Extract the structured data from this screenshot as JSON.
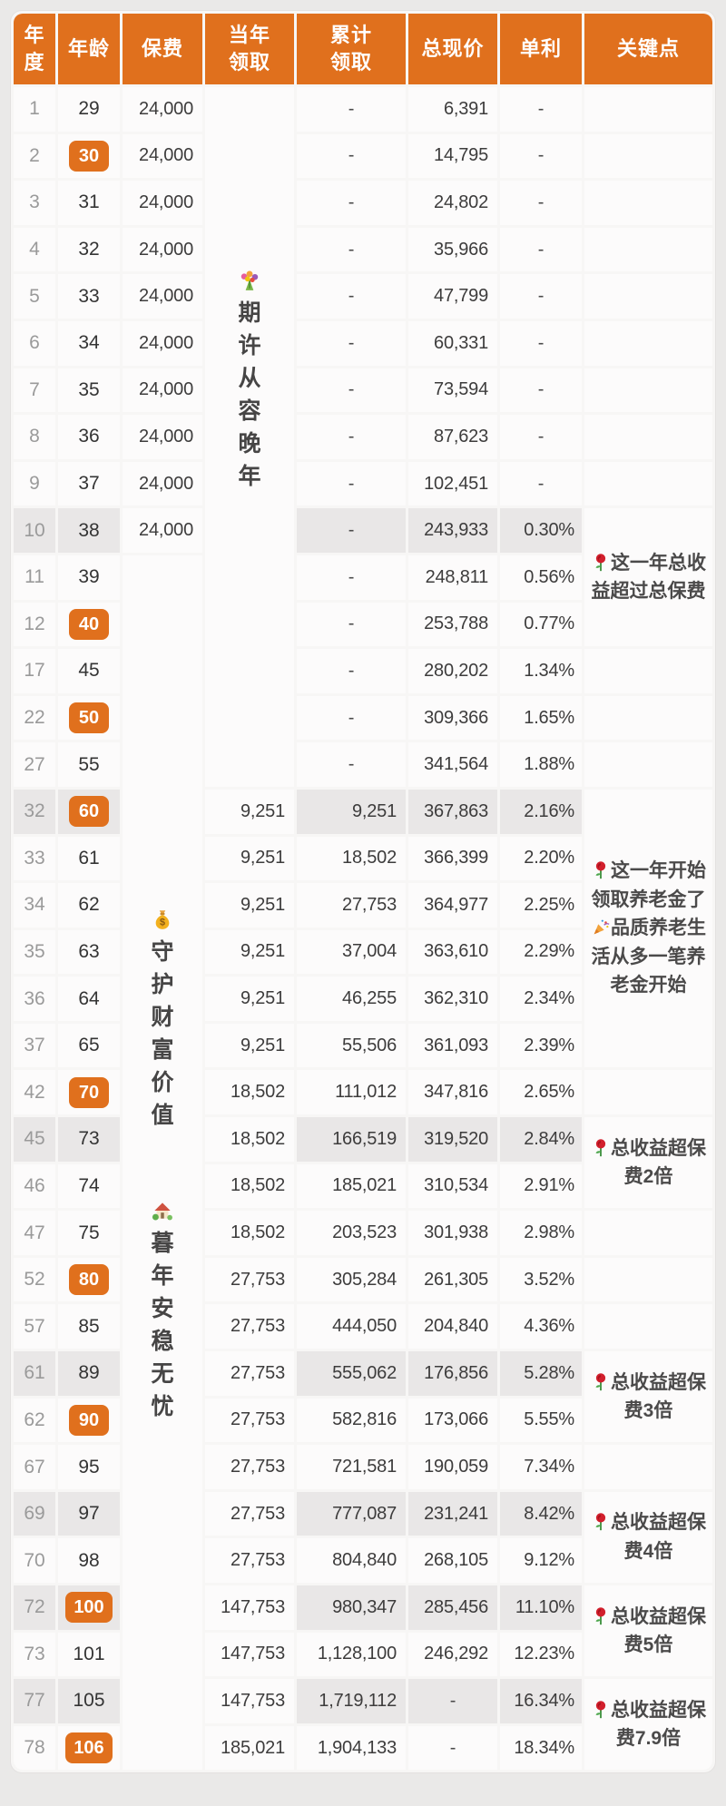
{
  "colors": {
    "page_bg": "#eae9e8",
    "header_bg": "#e0701d",
    "badge_bg": "#e0701d",
    "cell_bg": "#fcfbfb",
    "shaded_row_bg": "#e9e7e7",
    "year_text": "#9a9a9a",
    "number_text": "#3d3c3c",
    "key_point_text": "#4b4a4a"
  },
  "table": {
    "columns": [
      {
        "key": "year",
        "label": "年\n度"
      },
      {
        "key": "age",
        "label": "年龄"
      },
      {
        "key": "premium",
        "label": "保费"
      },
      {
        "key": "current",
        "label": "当年\n领取"
      },
      {
        "key": "cumulative",
        "label": "累计\n领取"
      },
      {
        "key": "total",
        "label": "总现价"
      },
      {
        "key": "rate",
        "label": "单利"
      },
      {
        "key": "key_point",
        "label": "关键点"
      }
    ],
    "rows": [
      {
        "year": "1",
        "age": "29",
        "age_badge": false,
        "premium": "24,000",
        "current": null,
        "cumulative": "-",
        "total": "6,391",
        "rate": "-",
        "shaded": false
      },
      {
        "year": "2",
        "age": "30",
        "age_badge": true,
        "premium": "24,000",
        "current": null,
        "cumulative": "-",
        "total": "14,795",
        "rate": "-",
        "shaded": false
      },
      {
        "year": "3",
        "age": "31",
        "age_badge": false,
        "premium": "24,000",
        "current": null,
        "cumulative": "-",
        "total": "24,802",
        "rate": "-",
        "shaded": false
      },
      {
        "year": "4",
        "age": "32",
        "age_badge": false,
        "premium": "24,000",
        "current": null,
        "cumulative": "-",
        "total": "35,966",
        "rate": "-",
        "shaded": false
      },
      {
        "year": "5",
        "age": "33",
        "age_badge": false,
        "premium": "24,000",
        "current": null,
        "cumulative": "-",
        "total": "47,799",
        "rate": "-",
        "shaded": false
      },
      {
        "year": "6",
        "age": "34",
        "age_badge": false,
        "premium": "24,000",
        "current": null,
        "cumulative": "-",
        "total": "60,331",
        "rate": "-",
        "shaded": false
      },
      {
        "year": "7",
        "age": "35",
        "age_badge": false,
        "premium": "24,000",
        "current": null,
        "cumulative": "-",
        "total": "73,594",
        "rate": "-",
        "shaded": false
      },
      {
        "year": "8",
        "age": "36",
        "age_badge": false,
        "premium": "24,000",
        "current": null,
        "cumulative": "-",
        "total": "87,623",
        "rate": "-",
        "shaded": false
      },
      {
        "year": "9",
        "age": "37",
        "age_badge": false,
        "premium": "24,000",
        "current": null,
        "cumulative": "-",
        "total": "102,451",
        "rate": "-",
        "shaded": false
      },
      {
        "year": "10",
        "age": "38",
        "age_badge": false,
        "premium": "24,000",
        "current": null,
        "cumulative": "-",
        "total": "243,933",
        "rate": "0.30%",
        "shaded": true
      },
      {
        "year": "11",
        "age": "39",
        "age_badge": false,
        "premium": null,
        "current": null,
        "cumulative": "-",
        "total": "248,811",
        "rate": "0.56%",
        "shaded": false
      },
      {
        "year": "12",
        "age": "40",
        "age_badge": true,
        "premium": null,
        "current": null,
        "cumulative": "-",
        "total": "253,788",
        "rate": "0.77%",
        "shaded": false
      },
      {
        "year": "17",
        "age": "45",
        "age_badge": false,
        "premium": null,
        "current": null,
        "cumulative": "-",
        "total": "280,202",
        "rate": "1.34%",
        "shaded": false
      },
      {
        "year": "22",
        "age": "50",
        "age_badge": true,
        "premium": null,
        "current": null,
        "cumulative": "-",
        "total": "309,366",
        "rate": "1.65%",
        "shaded": false
      },
      {
        "year": "27",
        "age": "55",
        "age_badge": false,
        "premium": null,
        "current": null,
        "cumulative": "-",
        "total": "341,564",
        "rate": "1.88%",
        "shaded": false
      },
      {
        "year": "32",
        "age": "60",
        "age_badge": true,
        "premium": null,
        "current": "9,251",
        "cumulative": "9,251",
        "total": "367,863",
        "rate": "2.16%",
        "shaded": true
      },
      {
        "year": "33",
        "age": "61",
        "age_badge": false,
        "premium": null,
        "current": "9,251",
        "cumulative": "18,502",
        "total": "366,399",
        "rate": "2.20%",
        "shaded": false
      },
      {
        "year": "34",
        "age": "62",
        "age_badge": false,
        "premium": null,
        "current": "9,251",
        "cumulative": "27,753",
        "total": "364,977",
        "rate": "2.25%",
        "shaded": false
      },
      {
        "year": "35",
        "age": "63",
        "age_badge": false,
        "premium": null,
        "current": "9,251",
        "cumulative": "37,004",
        "total": "363,610",
        "rate": "2.29%",
        "shaded": false
      },
      {
        "year": "36",
        "age": "64",
        "age_badge": false,
        "premium": null,
        "current": "9,251",
        "cumulative": "46,255",
        "total": "362,310",
        "rate": "2.34%",
        "shaded": false
      },
      {
        "year": "37",
        "age": "65",
        "age_badge": false,
        "premium": null,
        "current": "9,251",
        "cumulative": "55,506",
        "total": "361,093",
        "rate": "2.39%",
        "shaded": false
      },
      {
        "year": "42",
        "age": "70",
        "age_badge": true,
        "premium": null,
        "current": "18,502",
        "cumulative": "111,012",
        "total": "347,816",
        "rate": "2.65%",
        "shaded": false
      },
      {
        "year": "45",
        "age": "73",
        "age_badge": false,
        "premium": null,
        "current": "18,502",
        "cumulative": "166,519",
        "total": "319,520",
        "rate": "2.84%",
        "shaded": true
      },
      {
        "year": "46",
        "age": "74",
        "age_badge": false,
        "premium": null,
        "current": "18,502",
        "cumulative": "185,021",
        "total": "310,534",
        "rate": "2.91%",
        "shaded": false
      },
      {
        "year": "47",
        "age": "75",
        "age_badge": false,
        "premium": null,
        "current": "18,502",
        "cumulative": "203,523",
        "total": "301,938",
        "rate": "2.98%",
        "shaded": false
      },
      {
        "year": "52",
        "age": "80",
        "age_badge": true,
        "premium": null,
        "current": "27,753",
        "cumulative": "305,284",
        "total": "261,305",
        "rate": "3.52%",
        "shaded": false
      },
      {
        "year": "57",
        "age": "85",
        "age_badge": false,
        "premium": null,
        "current": "27,753",
        "cumulative": "444,050",
        "total": "204,840",
        "rate": "4.36%",
        "shaded": false
      },
      {
        "year": "61",
        "age": "89",
        "age_badge": false,
        "premium": null,
        "current": "27,753",
        "cumulative": "555,062",
        "total": "176,856",
        "rate": "5.28%",
        "shaded": true
      },
      {
        "year": "62",
        "age": "90",
        "age_badge": true,
        "premium": null,
        "current": "27,753",
        "cumulative": "582,816",
        "total": "173,066",
        "rate": "5.55%",
        "shaded": false
      },
      {
        "year": "67",
        "age": "95",
        "age_badge": false,
        "premium": null,
        "current": "27,753",
        "cumulative": "721,581",
        "total": "190,059",
        "rate": "7.34%",
        "shaded": false
      },
      {
        "year": "69",
        "age": "97",
        "age_badge": false,
        "premium": null,
        "current": "27,753",
        "cumulative": "777,087",
        "total": "231,241",
        "rate": "8.42%",
        "shaded": true
      },
      {
        "year": "70",
        "age": "98",
        "age_badge": false,
        "premium": null,
        "current": "27,753",
        "cumulative": "804,840",
        "total": "268,105",
        "rate": "9.12%",
        "shaded": false
      },
      {
        "year": "72",
        "age": "100",
        "age_badge": true,
        "premium": null,
        "current": "147,753",
        "cumulative": "980,347",
        "total": "285,456",
        "rate": "11.10%",
        "shaded": true
      },
      {
        "year": "73",
        "age": "101",
        "age_badge": false,
        "premium": null,
        "current": "147,753",
        "cumulative": "1,128,100",
        "total": "246,292",
        "rate": "12.23%",
        "shaded": false
      },
      {
        "year": "77",
        "age": "105",
        "age_badge": false,
        "premium": null,
        "current": "147,753",
        "cumulative": "1,719,112",
        "total": "-",
        "rate": "16.34%",
        "shaded": true
      },
      {
        "year": "78",
        "age": "106",
        "age_badge": true,
        "premium": null,
        "current": "185,021",
        "cumulative": "1,904,133",
        "total": "-",
        "rate": "18.34%",
        "shaded": false
      }
    ],
    "merged_cells": {
      "current_receive": {
        "from_row": 1,
        "to_row": 15,
        "icon": "bouquet-icon",
        "vertical_text": "期许从容晚年",
        "offset_top": "26%"
      },
      "premium": {
        "from_row": 11,
        "to_row": 36,
        "blocks": [
          {
            "icon": "money-bag-icon",
            "vertical_text": "守护财富价值",
            "offset_top": "29%"
          },
          {
            "icon": "house-icon",
            "vertical_text": "暮年安稳无忧",
            "offset_top": "53%"
          }
        ]
      }
    },
    "key_points": [
      {
        "from_row": 10,
        "to_row": 12,
        "segments": [
          {
            "icon": "rose-icon"
          },
          {
            "text": "这一年总收益超过总保费"
          }
        ]
      },
      {
        "from_row": 16,
        "to_row": 21,
        "segments": [
          {
            "icon": "rose-icon"
          },
          {
            "text": "这一年开始领取养老金了"
          },
          {
            "icon": "party-icon"
          },
          {
            "text": "品质养老生活从多一笔养老金开始"
          }
        ]
      },
      {
        "from_row": 23,
        "to_row": 24,
        "segments": [
          {
            "icon": "rose-icon"
          },
          {
            "text": "总收益超保费2倍"
          }
        ]
      },
      {
        "from_row": 28,
        "to_row": 29,
        "segments": [
          {
            "icon": "rose-icon"
          },
          {
            "text": "总收益超保费3倍"
          }
        ]
      },
      {
        "from_row": 31,
        "to_row": 32,
        "segments": [
          {
            "icon": "rose-icon"
          },
          {
            "text": "总收益超保费4倍"
          }
        ]
      },
      {
        "from_row": 33,
        "to_row": 34,
        "segments": [
          {
            "icon": "rose-icon"
          },
          {
            "text": "总收益超保费5倍"
          }
        ]
      },
      {
        "from_row": 35,
        "to_row": 36,
        "segments": [
          {
            "icon": "rose-icon"
          },
          {
            "text": "总收益超保费7.9倍"
          }
        ]
      }
    ]
  }
}
